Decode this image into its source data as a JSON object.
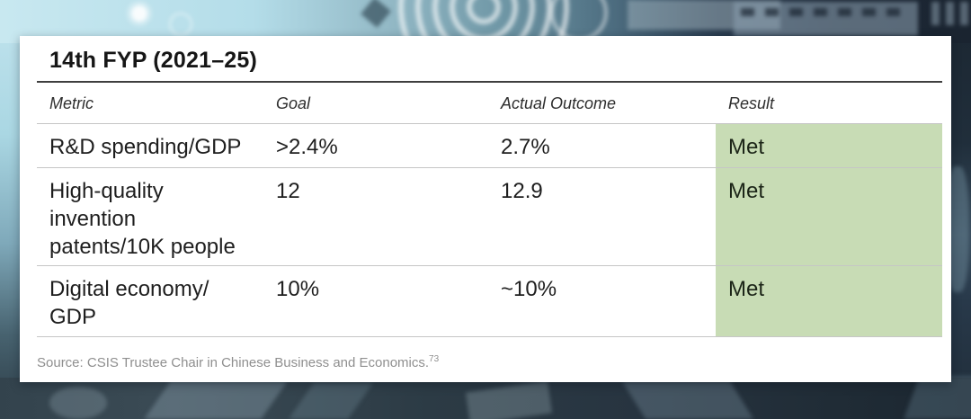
{
  "card": {
    "title": "14th FYP (2021–25)",
    "table": {
      "columns": [
        "Metric",
        "Goal",
        "Actual Outcome",
        "Result"
      ],
      "rows": [
        {
          "metric": "R&D spending/GDP",
          "goal": ">2.4%",
          "actual": "2.7%",
          "result": "Met"
        },
        {
          "metric": "High-quality\ninvention\npatents/10K people",
          "goal": "12",
          "actual": "12.9",
          "result": "Met"
        },
        {
          "metric": "Digital economy/\nGDP",
          "goal": "10%",
          "actual": "~10%",
          "result": "Met"
        }
      ]
    },
    "source": {
      "text": "Source: CSIS Trustee Chair in Chinese Business and Economics.",
      "footnote_marker": "73"
    }
  },
  "chart_data": {
    "type": "table",
    "title": "14th FYP (2021–25)",
    "columns": [
      "Metric",
      "Goal",
      "Actual Outcome",
      "Result"
    ],
    "rows": [
      [
        "R&D spending/GDP",
        ">2.4%",
        "2.7%",
        "Met"
      ],
      [
        "High-quality invention patents/10K people",
        "12",
        "12.9",
        "Met"
      ],
      [
        "Digital economy/GDP",
        "10%",
        "~10%",
        "Met"
      ]
    ],
    "source": "Source: CSIS Trustee Chair in Chinese Business and Economics.73",
    "layout": {
      "result_column_highlighted": true,
      "header_style": "italic",
      "grid": "horizontal-rules-only"
    }
  },
  "colors": {
    "met_cell_green": "#c8dcb5",
    "card_bg": "#ffffff",
    "title_text": "#161616",
    "body_text": "#1e1e1e",
    "header_text": "#2e2e2e",
    "source_text": "#8f8f8f",
    "title_rule": "#3f3f3f",
    "row_rule": "#c6c6c6",
    "bg_light_cyan": "#b4dde9",
    "bg_teal": "#6e96a5",
    "bg_dark_navy": "#1e2a38",
    "bg_bottom_slate": "#2f3f4a"
  }
}
